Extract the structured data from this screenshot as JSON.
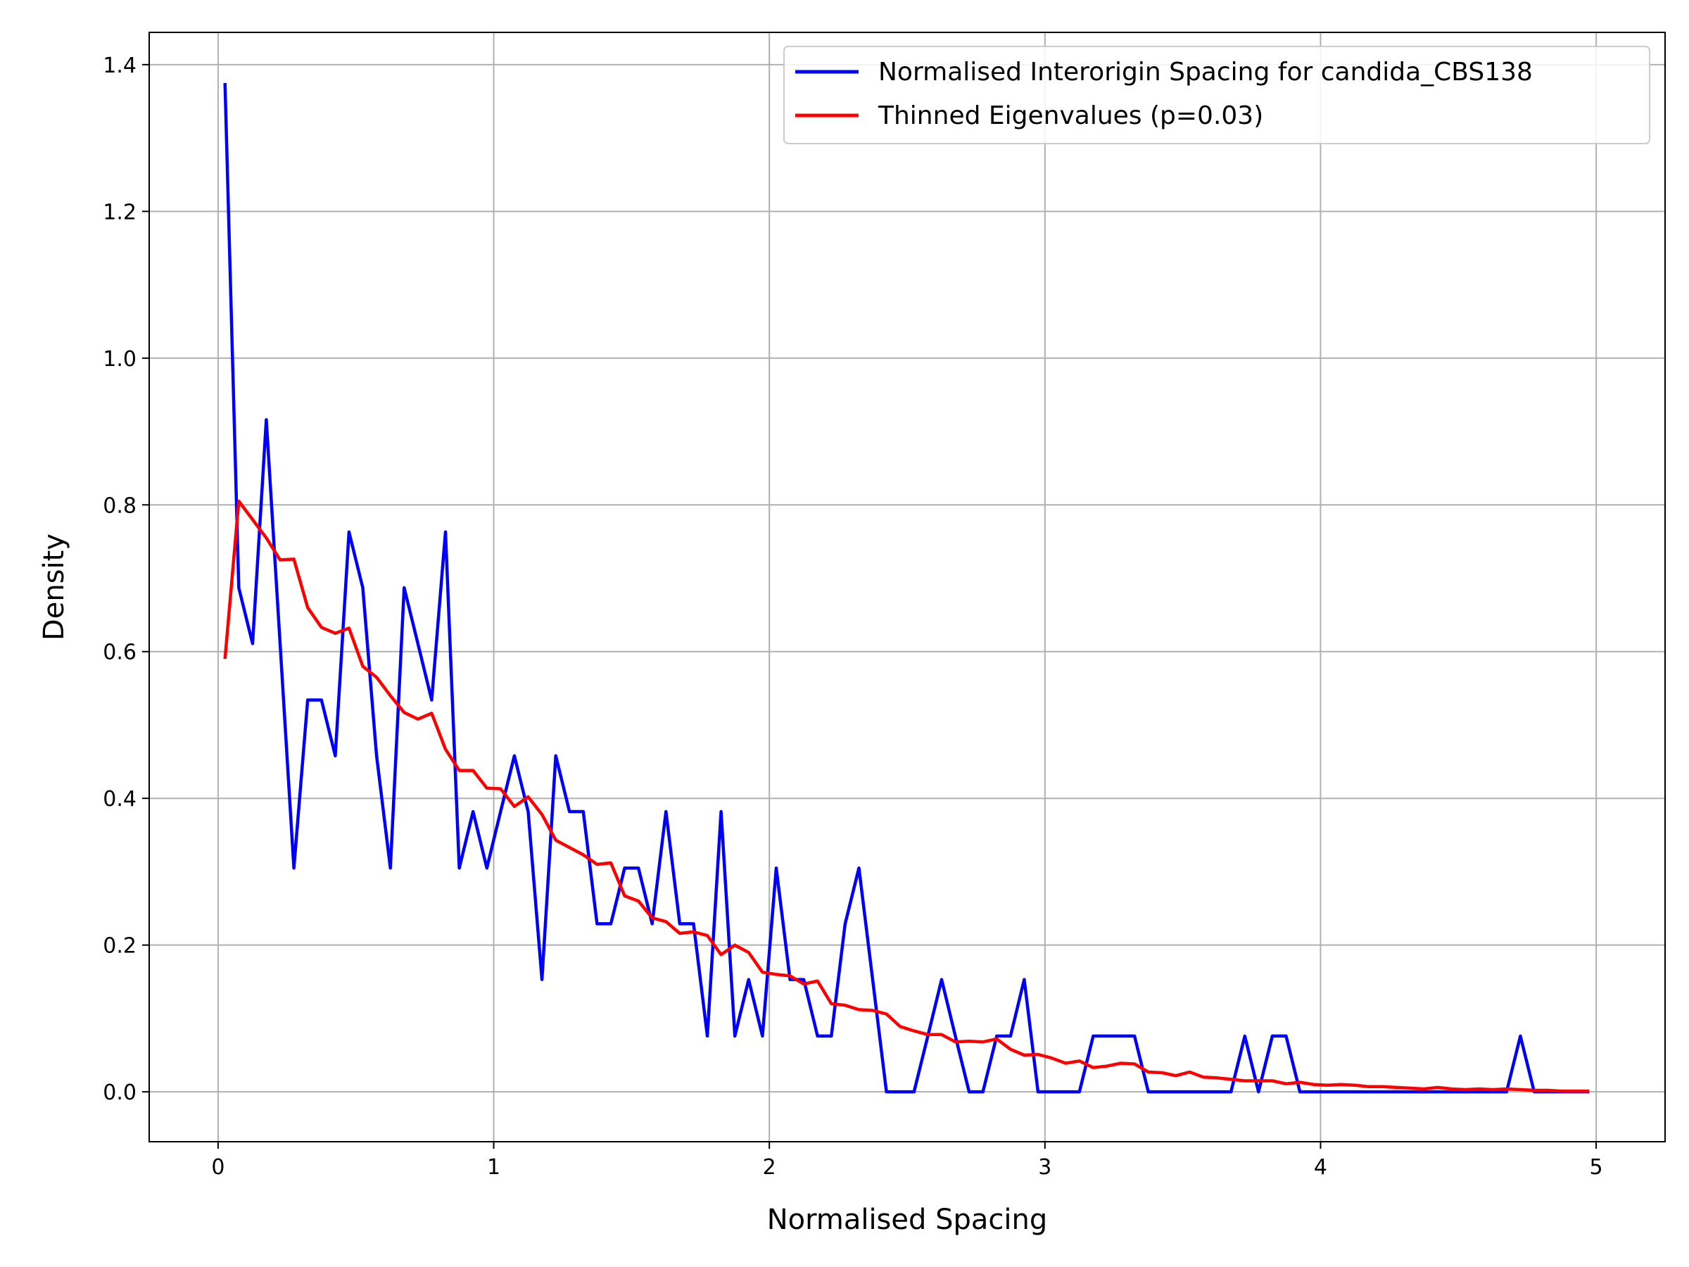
{
  "chart_data": {
    "type": "line",
    "title": "",
    "xlabel": "Normalised Spacing",
    "ylabel": "Density",
    "xlim": [
      -0.25,
      5.25
    ],
    "ylim": [
      -0.068,
      1.444
    ],
    "xticks": [
      0,
      1,
      2,
      3,
      4,
      5
    ],
    "xtick_labels": [
      "0",
      "1",
      "2",
      "3",
      "4",
      "5"
    ],
    "yticks": [
      0.0,
      0.2,
      0.4,
      0.6,
      0.8,
      1.0,
      1.2,
      1.4
    ],
    "ytick_labels": [
      "0.0",
      "0.2",
      "0.4",
      "0.6",
      "0.8",
      "1.0",
      "1.2",
      "1.4"
    ],
    "grid": true,
    "legend_position": "top-right",
    "series": [
      {
        "name": "Normalised Interorigin Spacing for candida_CBS138",
        "color": "#0000ff",
        "x": [
          0.025,
          0.075,
          0.125,
          0.175,
          0.225,
          0.275,
          0.325,
          0.375,
          0.425,
          0.475,
          0.525,
          0.575,
          0.625,
          0.675,
          0.725,
          0.775,
          0.825,
          0.875,
          0.925,
          0.975,
          1.025,
          1.075,
          1.125,
          1.175,
          1.225,
          1.275,
          1.325,
          1.375,
          1.425,
          1.475,
          1.525,
          1.575,
          1.625,
          1.675,
          1.725,
          1.775,
          1.825,
          1.875,
          1.925,
          1.975,
          2.025,
          2.075,
          2.125,
          2.175,
          2.225,
          2.275,
          2.325,
          2.375,
          2.425,
          2.475,
          2.525,
          2.575,
          2.625,
          2.675,
          2.725,
          2.775,
          2.825,
          2.875,
          2.925,
          2.975,
          3.025,
          3.075,
          3.125,
          3.175,
          3.225,
          3.275,
          3.325,
          3.375,
          3.425,
          3.475,
          3.525,
          3.575,
          3.625,
          3.675,
          3.725,
          3.775,
          3.825,
          3.875,
          3.925,
          3.975,
          4.025,
          4.075,
          4.125,
          4.175,
          4.225,
          4.275,
          4.325,
          4.375,
          4.425,
          4.475,
          4.525,
          4.575,
          4.625,
          4.675,
          4.725,
          4.775,
          4.825,
          4.875,
          4.925,
          4.975
        ],
        "y": [
          1.375,
          0.687,
          0.611,
          0.916,
          0.611,
          0.305,
          0.534,
          0.534,
          0.458,
          0.763,
          0.687,
          0.458,
          0.305,
          0.687,
          0.611,
          0.534,
          0.763,
          0.305,
          0.382,
          0.305,
          0.382,
          0.458,
          0.382,
          0.153,
          0.458,
          0.382,
          0.382,
          0.229,
          0.229,
          0.305,
          0.305,
          0.229,
          0.382,
          0.229,
          0.229,
          0.076,
          0.382,
          0.076,
          0.153,
          0.076,
          0.305,
          0.153,
          0.153,
          0.076,
          0.076,
          0.229,
          0.305,
          0.153,
          0.0,
          0.0,
          0.0,
          0.076,
          0.153,
          0.076,
          0.0,
          0.0,
          0.076,
          0.076,
          0.153,
          0.0,
          0.0,
          0.0,
          0.0,
          0.076,
          0.076,
          0.076,
          0.076,
          0.0,
          0.0,
          0.0,
          0.0,
          0.0,
          0.0,
          0.0,
          0.076,
          0.0,
          0.076,
          0.076,
          0.0,
          0.0,
          0.0,
          0.0,
          0.0,
          0.0,
          0.0,
          0.0,
          0.0,
          0.0,
          0.0,
          0.0,
          0.0,
          0.0,
          0.0,
          0.0,
          0.076,
          0.0,
          0.0,
          0.0,
          0.0,
          0.0
        ]
      },
      {
        "name": "Thinned Eigenvalues (p=0.03)",
        "color": "#ff0000",
        "x": [
          0.025,
          0.075,
          0.125,
          0.175,
          0.225,
          0.275,
          0.325,
          0.375,
          0.425,
          0.475,
          0.525,
          0.575,
          0.625,
          0.675,
          0.725,
          0.775,
          0.825,
          0.875,
          0.925,
          0.975,
          1.025,
          1.075,
          1.125,
          1.175,
          1.225,
          1.275,
          1.325,
          1.375,
          1.425,
          1.475,
          1.525,
          1.575,
          1.625,
          1.675,
          1.725,
          1.775,
          1.825,
          1.875,
          1.925,
          1.975,
          2.025,
          2.075,
          2.125,
          2.175,
          2.225,
          2.275,
          2.325,
          2.375,
          2.425,
          2.475,
          2.525,
          2.575,
          2.625,
          2.675,
          2.725,
          2.775,
          2.825,
          2.875,
          2.925,
          2.975,
          3.025,
          3.075,
          3.125,
          3.175,
          3.225,
          3.275,
          3.325,
          3.375,
          3.425,
          3.475,
          3.525,
          3.575,
          3.625,
          3.675,
          3.725,
          3.775,
          3.825,
          3.875,
          3.925,
          3.975,
          4.025,
          4.075,
          4.125,
          4.175,
          4.225,
          4.275,
          4.325,
          4.375,
          4.425,
          4.475,
          4.525,
          4.575,
          4.625,
          4.675,
          4.725,
          4.775,
          4.825,
          4.875,
          4.925,
          4.975
        ],
        "y": [
          0.59,
          0.805,
          0.78,
          0.755,
          0.725,
          0.726,
          0.66,
          0.633,
          0.625,
          0.632,
          0.58,
          0.565,
          0.54,
          0.517,
          0.508,
          0.516,
          0.467,
          0.438,
          0.438,
          0.414,
          0.413,
          0.389,
          0.402,
          0.378,
          0.343,
          0.333,
          0.323,
          0.31,
          0.312,
          0.267,
          0.26,
          0.237,
          0.232,
          0.216,
          0.218,
          0.213,
          0.187,
          0.2,
          0.19,
          0.163,
          0.16,
          0.158,
          0.147,
          0.151,
          0.12,
          0.118,
          0.112,
          0.111,
          0.106,
          0.089,
          0.083,
          0.078,
          0.078,
          0.068,
          0.069,
          0.068,
          0.072,
          0.058,
          0.05,
          0.051,
          0.046,
          0.039,
          0.042,
          0.033,
          0.035,
          0.039,
          0.038,
          0.027,
          0.026,
          0.022,
          0.027,
          0.02,
          0.019,
          0.017,
          0.015,
          0.015,
          0.015,
          0.011,
          0.013,
          0.01,
          0.009,
          0.01,
          0.009,
          0.007,
          0.007,
          0.006,
          0.005,
          0.004,
          0.006,
          0.004,
          0.003,
          0.004,
          0.003,
          0.004,
          0.003,
          0.002,
          0.002,
          0.001,
          0.001,
          0.001
        ]
      }
    ]
  }
}
